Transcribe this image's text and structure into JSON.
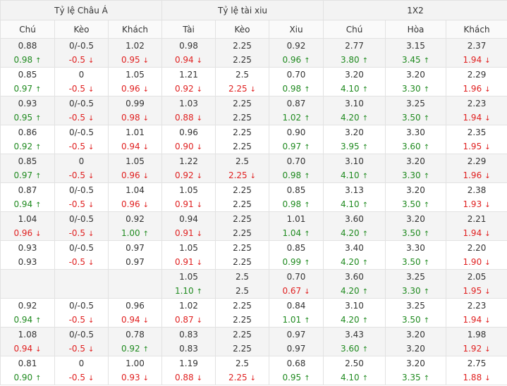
{
  "colors": {
    "up": "#1f8a1f",
    "down": "#e02020"
  },
  "icons": {
    "up": "up-arrow-icon",
    "down": "down-arrow-icon"
  },
  "groups": [
    "Tỷ lệ Châu Á",
    "Tỷ lệ tài xiu",
    "1X2"
  ],
  "columns": [
    "Chú",
    "Kèo",
    "Khách",
    "Tài",
    "Kèo",
    "Xiu",
    "Chú",
    "Hòa",
    "Khách"
  ],
  "rows": [
    [
      [
        "0.88",
        "0.98",
        "up"
      ],
      [
        "0/-0.5",
        "-0.5",
        "down"
      ],
      [
        "1.02",
        "0.95",
        "down"
      ],
      [
        "0.98",
        "0.94",
        "down"
      ],
      [
        "2.25",
        "2.25",
        ""
      ],
      [
        "0.92",
        "0.96",
        "up"
      ],
      [
        "2.77",
        "3.80",
        "up"
      ],
      [
        "3.15",
        "3.45",
        "up"
      ],
      [
        "2.37",
        "1.94",
        "down"
      ]
    ],
    [
      [
        "0.85",
        "0.97",
        "up"
      ],
      [
        "0",
        "-0.5",
        "down"
      ],
      [
        "1.05",
        "0.96",
        "down"
      ],
      [
        "1.21",
        "0.92",
        "down"
      ],
      [
        "2.5",
        "2.25",
        "down"
      ],
      [
        "0.70",
        "0.98",
        "up"
      ],
      [
        "3.20",
        "4.10",
        "up"
      ],
      [
        "3.20",
        "3.30",
        "up"
      ],
      [
        "2.29",
        "1.96",
        "down"
      ]
    ],
    [
      [
        "0.93",
        "0.95",
        "up"
      ],
      [
        "0/-0.5",
        "-0.5",
        "down"
      ],
      [
        "0.99",
        "0.98",
        "down"
      ],
      [
        "1.03",
        "0.88",
        "down"
      ],
      [
        "2.25",
        "2.25",
        ""
      ],
      [
        "0.87",
        "1.02",
        "up"
      ],
      [
        "3.10",
        "4.20",
        "up"
      ],
      [
        "3.25",
        "3.50",
        "up"
      ],
      [
        "2.23",
        "1.94",
        "down"
      ]
    ],
    [
      [
        "0.86",
        "0.92",
        "up"
      ],
      [
        "0/-0.5",
        "-0.5",
        "down"
      ],
      [
        "1.01",
        "0.94",
        "down"
      ],
      [
        "0.96",
        "0.90",
        "down"
      ],
      [
        "2.25",
        "2.25",
        ""
      ],
      [
        "0.90",
        "0.97",
        "up"
      ],
      [
        "3.20",
        "3.95",
        "up"
      ],
      [
        "3.30",
        "3.60",
        "up"
      ],
      [
        "2.35",
        "1.95",
        "down"
      ]
    ],
    [
      [
        "0.85",
        "0.97",
        "up"
      ],
      [
        "0",
        "-0.5",
        "down"
      ],
      [
        "1.05",
        "0.96",
        "down"
      ],
      [
        "1.22",
        "0.92",
        "down"
      ],
      [
        "2.5",
        "2.25",
        "down"
      ],
      [
        "0.70",
        "0.98",
        "up"
      ],
      [
        "3.10",
        "4.10",
        "up"
      ],
      [
        "3.20",
        "3.30",
        "up"
      ],
      [
        "2.29",
        "1.96",
        "down"
      ]
    ],
    [
      [
        "0.87",
        "0.94",
        "up"
      ],
      [
        "0/-0.5",
        "-0.5",
        "down"
      ],
      [
        "1.04",
        "0.96",
        "down"
      ],
      [
        "1.05",
        "0.91",
        "down"
      ],
      [
        "2.25",
        "2.25",
        ""
      ],
      [
        "0.85",
        "0.98",
        "up"
      ],
      [
        "3.13",
        "4.10",
        "up"
      ],
      [
        "3.20",
        "3.50",
        "up"
      ],
      [
        "2.38",
        "1.93",
        "down"
      ]
    ],
    [
      [
        "1.04",
        "0.96",
        "down"
      ],
      [
        "0/-0.5",
        "-0.5",
        "down"
      ],
      [
        "0.92",
        "1.00",
        "up"
      ],
      [
        "0.94",
        "0.91",
        "down"
      ],
      [
        "2.25",
        "2.25",
        ""
      ],
      [
        "1.01",
        "1.04",
        "up"
      ],
      [
        "3.60",
        "4.20",
        "up"
      ],
      [
        "3.20",
        "3.50",
        "up"
      ],
      [
        "2.21",
        "1.94",
        "down"
      ]
    ],
    [
      [
        "0.93",
        "0.93",
        ""
      ],
      [
        "0/-0.5",
        "-0.5",
        "down"
      ],
      [
        "0.97",
        "0.97",
        ""
      ],
      [
        "1.05",
        "0.91",
        "down"
      ],
      [
        "2.25",
        "2.25",
        ""
      ],
      [
        "0.85",
        "0.99",
        "up"
      ],
      [
        "3.40",
        "4.20",
        "up"
      ],
      [
        "3.30",
        "3.50",
        "up"
      ],
      [
        "2.20",
        "1.90",
        "down"
      ]
    ],
    [
      [
        "",
        "",
        ""
      ],
      [
        "",
        "",
        ""
      ],
      [
        "",
        "",
        ""
      ],
      [
        "1.05",
        "1.10",
        "up"
      ],
      [
        "2.5",
        "2.5",
        ""
      ],
      [
        "0.70",
        "0.67",
        "down"
      ],
      [
        "3.60",
        "4.20",
        "up"
      ],
      [
        "3.25",
        "3.30",
        "up"
      ],
      [
        "2.05",
        "1.95",
        "down"
      ]
    ],
    [
      [
        "0.92",
        "0.94",
        "up"
      ],
      [
        "0/-0.5",
        "-0.5",
        "down"
      ],
      [
        "0.96",
        "0.94",
        "down"
      ],
      [
        "1.02",
        "0.87",
        "down"
      ],
      [
        "2.25",
        "2.25",
        ""
      ],
      [
        "0.84",
        "1.01",
        "up"
      ],
      [
        "3.10",
        "4.20",
        "up"
      ],
      [
        "3.25",
        "3.50",
        "up"
      ],
      [
        "2.23",
        "1.94",
        "down"
      ]
    ],
    [
      [
        "1.08",
        "0.94",
        "down"
      ],
      [
        "0/-0.5",
        "-0.5",
        "down"
      ],
      [
        "0.78",
        "0.92",
        "up"
      ],
      [
        "0.83",
        "0.83",
        ""
      ],
      [
        "2.25",
        "2.25",
        ""
      ],
      [
        "0.97",
        "0.97",
        ""
      ],
      [
        "3.43",
        "3.60",
        "up"
      ],
      [
        "3.20",
        "3.20",
        ""
      ],
      [
        "1.98",
        "1.92",
        "down"
      ]
    ],
    [
      [
        "0.81",
        "0.90",
        "up"
      ],
      [
        "0",
        "-0.5",
        "down"
      ],
      [
        "1.00",
        "0.93",
        "down"
      ],
      [
        "1.19",
        "0.88",
        "down"
      ],
      [
        "2.5",
        "2.25",
        "down"
      ],
      [
        "0.68",
        "0.95",
        "up"
      ],
      [
        "2.50",
        "4.10",
        "up"
      ],
      [
        "3.20",
        "3.35",
        "up"
      ],
      [
        "2.75",
        "1.88",
        "down"
      ]
    ]
  ]
}
